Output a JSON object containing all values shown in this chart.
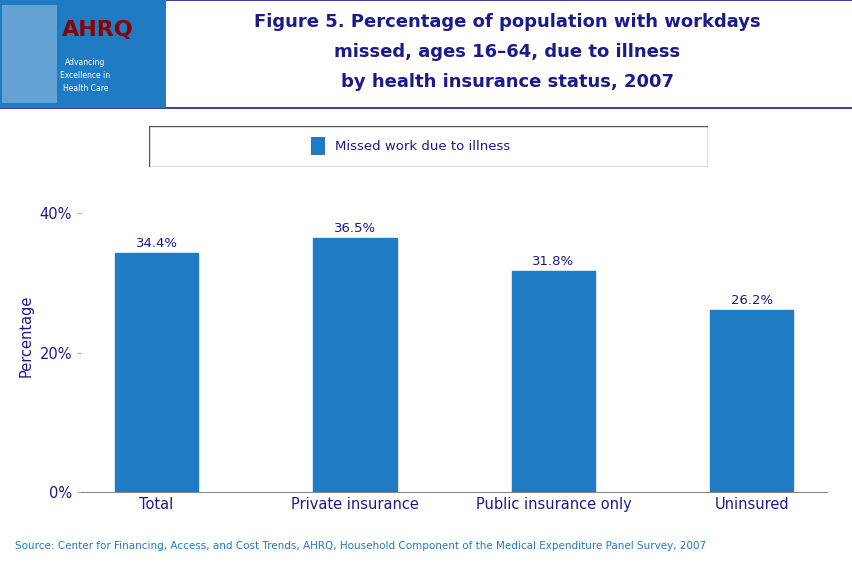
{
  "categories": [
    "Total",
    "Private insurance",
    "Public insurance only",
    "Uninsured"
  ],
  "values": [
    34.4,
    36.5,
    31.8,
    26.2
  ],
  "bar_color": "#1f7bc4",
  "title_line1": "Figure 5. Percentage of population with workdays",
  "title_line2": "missed, ages 16–64, due to illness",
  "title_line3": "by health insurance status, 2007",
  "title_color": "#1a1a8c",
  "ylabel": "Percentage",
  "ylabel_color": "#1a1a8c",
  "yticks": [
    0,
    20,
    40
  ],
  "ytick_labels": [
    "0%",
    "20%",
    "40%"
  ],
  "ylim": [
    0,
    45
  ],
  "legend_label": "Missed work due to illness",
  "legend_label_color": "#1a1a8c",
  "source_text": "Source: Center for Financing, Access, and Cost Trends, AHRQ, Household Component of the Medical Expenditure Panel Survey, 2007",
  "source_color": "#1f7bc4",
  "bar_label_color": "#1a1a8c",
  "xticklabel_color": "#1a1a8c",
  "background_color": "#ffffff",
  "header_bar_color": "#1a1a8c",
  "figure_bg": "#ffffff",
  "logo_bg": "#1f7bc4",
  "logo_text_color": "#ffffff"
}
